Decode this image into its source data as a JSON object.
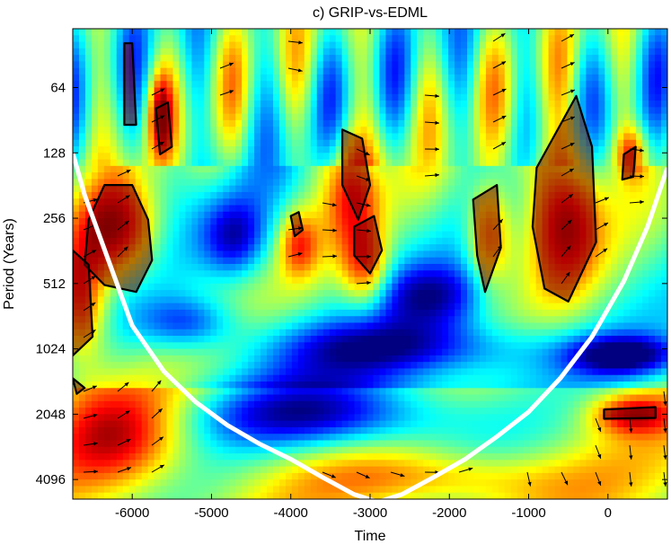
{
  "chart_data": {
    "type": "heatmap",
    "subtype": "wavelet-coherence",
    "title": "c) GRIP-vs-EDML",
    "xlabel": "Time",
    "ylabel": "Period (Years)",
    "xlim": [
      -6750,
      750
    ],
    "ylim_log2": [
      5.1,
      12.3
    ],
    "x_ticks": [
      -6000,
      -5000,
      -4000,
      -3000,
      -2000,
      -1000,
      0
    ],
    "y_ticks": [
      64,
      128,
      256,
      512,
      1024,
      2048,
      4096
    ],
    "y_scale": "log2",
    "y_reversed": true,
    "colormap": "jet",
    "grid": false,
    "cone_of_influence": {
      "color": "#ffffff",
      "x": [
        -6750,
        -6600,
        -6300,
        -6000,
        -5600,
        -5200,
        -4800,
        -4400,
        -4000,
        -3600,
        -3200,
        -2900,
        -2600,
        -2200,
        -1800,
        -1400,
        -1000,
        -600,
        -200,
        200,
        500,
        750
      ],
      "period": [
        128,
        200,
        400,
        800,
        1300,
        1800,
        2300,
        2800,
        3300,
        4000,
        4800,
        5200,
        4800,
        4000,
        3300,
        2600,
        2000,
        1400,
        900,
        500,
        280,
        150
      ]
    },
    "significance_regions": [
      {
        "x": [
          -6350,
          -6000,
          -5800,
          -5750,
          -5950,
          -6350,
          -6600,
          -6550
        ],
        "period": [
          180,
          180,
          260,
          400,
          560,
          520,
          420,
          260
        ]
      },
      {
        "x": [
          -6750,
          -6550,
          -6500,
          -6750
        ],
        "period": [
          360,
          420,
          900,
          1100
        ]
      },
      {
        "x": [
          -6750,
          -6600,
          -6700
        ],
        "period": [
          1400,
          1550,
          1650
        ]
      },
      {
        "x": [
          -5700,
          -5550,
          -5500,
          -5650
        ],
        "period": [
          80,
          75,
          120,
          130
        ]
      },
      {
        "x": [
          -6100,
          -6000,
          -5950,
          -6100
        ],
        "period": [
          40,
          40,
          95,
          95
        ]
      },
      {
        "x": [
          -3350,
          -3100,
          -3000,
          -3150,
          -3350
        ],
        "period": [
          100,
          110,
          180,
          260,
          180
        ]
      },
      {
        "x": [
          -3200,
          -2950,
          -2850,
          -3000,
          -3200
        ],
        "period": [
          280,
          250,
          360,
          460,
          380
        ]
      },
      {
        "x": [
          -4000,
          -3900,
          -3850,
          -3950
        ],
        "period": [
          250,
          240,
          290,
          310
        ]
      },
      {
        "x": [
          -1700,
          -1400,
          -1350,
          -1550,
          -1650
        ],
        "period": [
          210,
          180,
          350,
          560,
          380
        ]
      },
      {
        "x": [
          -900,
          -400,
          -200,
          -150,
          -500,
          -800,
          -950
        ],
        "period": [
          150,
          70,
          120,
          330,
          620,
          540,
          280
        ]
      },
      {
        "x": [
          200,
          350,
          320,
          180
        ],
        "period": [
          130,
          120,
          165,
          170
        ]
      },
      {
        "x": [
          -50,
          600,
          600,
          -50
        ],
        "period": [
          1950,
          1900,
          2130,
          2150
        ]
      }
    ]
  }
}
